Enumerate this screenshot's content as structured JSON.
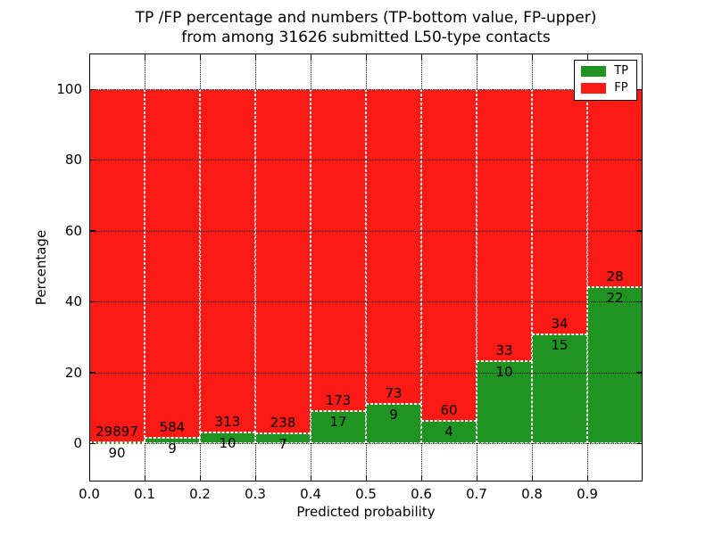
{
  "title": {
    "line1": "TP /FP percentage and numbers (TP-bottom value, FP-upper)",
    "line2": "from among 31626 submitted L50-type contacts"
  },
  "axes": {
    "x_label": "Predicted probability",
    "y_label": "Percentage",
    "x_ticks": [
      "0.0",
      "0.1",
      "0.2",
      "0.3",
      "0.4",
      "0.5",
      "0.6",
      "0.7",
      "0.8",
      "0.9"
    ],
    "y_ticks": [
      "0",
      "20",
      "40",
      "60",
      "80",
      "100"
    ]
  },
  "legend": {
    "items": [
      {
        "label": "TP",
        "color": "#1f9420"
      },
      {
        "label": "FP",
        "color": "#fc1b14"
      }
    ]
  },
  "colors": {
    "tp_green": "#1f9420",
    "fp_red": "#fc1b14",
    "grid": "#000000",
    "bar_edge": "#ffffff"
  },
  "chart_data": {
    "type": "bar",
    "stacked": true,
    "title": "TP /FP percentage and numbers (TP-bottom value, FP-upper) from among 31626 submitted L50-type contacts",
    "xlabel": "Predicted probability",
    "ylabel": "Percentage",
    "total_submitted": 31626,
    "xlim": [
      0.0,
      1.0
    ],
    "ylim": [
      -11,
      110
    ],
    "bin_width": 0.1,
    "grid": "dotted",
    "legend_position": "upper right",
    "categories": [
      "0.0-0.1",
      "0.1-0.2",
      "0.2-0.3",
      "0.3-0.4",
      "0.4-0.5",
      "0.5-0.6",
      "0.6-0.7",
      "0.7-0.8",
      "0.8-0.9",
      "0.9-1.0"
    ],
    "series": [
      {
        "name": "TP",
        "color": "#1f9420",
        "counts": [
          90,
          9,
          10,
          7,
          17,
          9,
          4,
          10,
          15,
          22
        ],
        "percent": [
          0.3,
          1.52,
          3.1,
          2.86,
          8.95,
          10.98,
          6.25,
          23.26,
          30.61,
          44.0
        ]
      },
      {
        "name": "FP",
        "color": "#fc1b14",
        "counts": [
          29897,
          584,
          313,
          238,
          173,
          73,
          60,
          33,
          34,
          28
        ],
        "percent": [
          99.7,
          98.48,
          96.9,
          97.14,
          91.05,
          89.02,
          93.75,
          76.74,
          69.39,
          56.0
        ]
      }
    ],
    "annotation_note_from_title": "TP-bottom value, FP-upper"
  }
}
